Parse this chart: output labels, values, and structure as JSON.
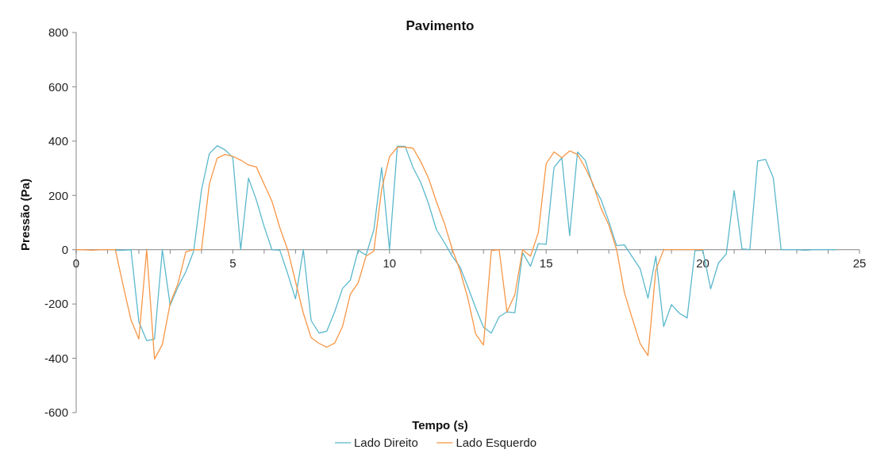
{
  "chart_data": {
    "type": "line",
    "title": "Pavimento",
    "xlabel": "Tempo (s)",
    "ylabel": "Pressão (Pa)",
    "xlim": [
      0,
      25
    ],
    "xticks": [
      0,
      {
        "value": 1,
        "label": null
      },
      {
        "value": 2,
        "label": null
      },
      {
        "value": 3,
        "label": null
      },
      {
        "value": 4,
        "label": null
      },
      5,
      {
        "value": 6,
        "label": null
      },
      {
        "value": 7,
        "label": null
      },
      {
        "value": 8,
        "label": null
      },
      {
        "value": 9,
        "label": null
      },
      10,
      {
        "value": 11,
        "label": null
      },
      {
        "value": 12,
        "label": null
      },
      {
        "value": 13,
        "label": null
      },
      {
        "value": 14,
        "label": null
      },
      15,
      {
        "value": 16,
        "label": null
      },
      {
        "value": 17,
        "label": null
      },
      {
        "value": 18,
        "label": null
      },
      {
        "value": 19,
        "label": null
      },
      20,
      {
        "value": 21,
        "label": null
      },
      {
        "value": 22,
        "label": null
      },
      {
        "value": 23,
        "label": null
      },
      {
        "value": 24,
        "label": null
      },
      25
    ],
    "ylim": [
      -600,
      800
    ],
    "yticks": [
      -600,
      -400,
      -200,
      0,
      200,
      400,
      600,
      800
    ],
    "grid": false,
    "legend": "bottom",
    "line_style": "solid",
    "series": [
      {
        "name": "Lado Direito",
        "color": "#5bb8cc",
        "x": [
          1.25,
          1.5,
          1.75,
          2,
          2.25,
          2.5,
          2.75,
          3,
          3.25,
          3.5,
          3.75,
          4,
          4.25,
          4.5,
          4.75,
          5,
          5.25,
          5.5,
          5.75,
          6,
          6.25,
          6.5,
          6.75,
          7,
          7.25,
          7.5,
          7.75,
          8,
          8.25,
          8.5,
          8.75,
          9,
          9.25,
          9.5,
          9.75,
          10,
          10.25,
          10.5,
          10.75,
          11,
          11.25,
          11.5,
          11.75,
          12,
          12.25,
          12.5,
          12.75,
          13,
          13.25,
          13.5,
          13.75,
          14,
          14.25,
          14.5,
          14.75,
          15,
          15.25,
          15.5,
          15.75,
          16,
          16.25,
          16.5,
          16.75,
          17,
          17.25,
          17.5,
          17.75,
          18,
          18.25,
          18.5,
          18.75,
          19,
          19.25,
          19.5,
          19.75,
          20,
          20.25,
          20.5,
          20.75,
          21,
          21.25,
          21.5,
          21.75,
          22,
          22.25,
          22.5,
          22.75,
          23,
          23.25,
          23.5,
          23.75,
          24,
          24.25
        ],
        "values": [
          -2,
          -2,
          0,
          -265,
          -335,
          -329,
          0,
          -205,
          -137,
          -81,
          -5,
          220,
          354,
          383,
          368,
          340,
          0,
          264,
          183,
          85,
          0,
          -2,
          -88,
          -181,
          0,
          -261,
          -307,
          -300,
          -229,
          -143,
          -112,
          -2,
          -20,
          73,
          303,
          0,
          381,
          381,
          303,
          247,
          168,
          73,
          27,
          -24,
          -63,
          -137,
          -214,
          -286,
          -307,
          -247,
          -229,
          -232,
          -11,
          -61,
          22,
          20,
          303,
          339,
          52,
          360,
          329,
          234,
          185,
          104,
          15,
          18,
          -27,
          -70,
          -179,
          -24,
          -283,
          -202,
          -234,
          -251,
          -3,
          -2,
          -144,
          -49,
          -15,
          218,
          3,
          0,
          327,
          333,
          265,
          0,
          0,
          0,
          -2,
          0,
          0,
          0,
          0
        ]
      },
      {
        "name": "Lado Esquerdo",
        "color": "#f79646",
        "x": [
          0,
          0.25,
          0.5,
          0.75,
          1,
          1.25,
          1.5,
          1.75,
          2,
          2.25,
          2.5,
          2.75,
          3,
          3.25,
          3.5,
          3.75,
          4,
          4.25,
          4.5,
          4.75,
          5,
          5.25,
          5.5,
          5.75,
          6,
          6.25,
          6.5,
          6.75,
          7,
          7.25,
          7.5,
          7.75,
          8,
          8.25,
          8.5,
          8.75,
          9,
          9.25,
          9.5,
          9.75,
          10,
          10.25,
          10.5,
          10.75,
          11,
          11.25,
          11.5,
          11.75,
          12,
          12.25,
          12.5,
          12.75,
          13,
          13.25,
          13.5,
          13.75,
          14,
          14.25,
          14.5,
          14.75,
          15,
          15.25,
          15.5,
          15.75,
          16,
          16.25,
          16.5,
          16.75,
          17,
          17.25,
          17.5,
          17.75,
          18,
          18.25,
          18.5,
          18.75,
          19,
          19.25,
          19.5,
          19.75,
          20
        ],
        "values": [
          0,
          0,
          -2,
          0,
          0,
          0,
          -132,
          -259,
          -329,
          0,
          -403,
          -349,
          -198,
          -124,
          -8,
          0,
          0,
          242,
          337,
          351,
          344,
          330,
          312,
          305,
          241,
          178,
          81,
          0,
          -117,
          -234,
          -324,
          -345,
          -359,
          -344,
          -283,
          -164,
          -122,
          -24,
          -5,
          223,
          342,
          378,
          378,
          374,
          324,
          262,
          176,
          98,
          3,
          -76,
          -178,
          -310,
          -351,
          -3,
          0,
          -229,
          -166,
          0,
          -24,
          63,
          317,
          360,
          339,
          364,
          351,
          301,
          241,
          153,
          91,
          0,
          -159,
          -254,
          -346,
          -390,
          -75,
          0,
          0,
          0,
          0,
          0,
          0
        ]
      }
    ]
  }
}
